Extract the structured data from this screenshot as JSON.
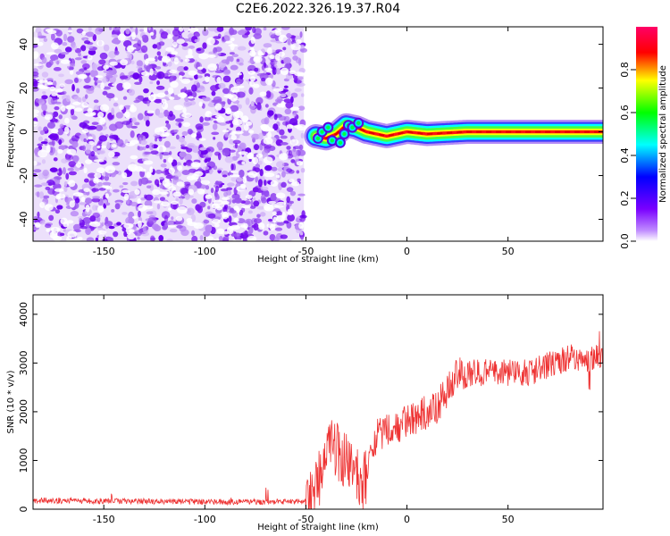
{
  "title": "C2E6.2022.326.19.37.R04",
  "chart_data": [
    {
      "type": "heatmap",
      "xlabel": "Height of straight line (km)",
      "ylabel": "Frequency (Hz)",
      "xlim": [
        -185,
        97
      ],
      "ylim": [
        -50,
        48
      ],
      "xticks": [
        -150,
        -100,
        -50,
        0,
        50
      ],
      "yticks": [
        -40,
        -20,
        0,
        20,
        40
      ],
      "noise_region_x": [
        -185,
        -51
      ],
      "signal_center_frequency": [
        {
          "x": -45,
          "y": -2
        },
        {
          "x": -40,
          "y": -3
        },
        {
          "x": -35,
          "y": -1
        },
        {
          "x": -30,
          "y": 3
        },
        {
          "x": -25,
          "y": 2
        },
        {
          "x": -20,
          "y": 0
        },
        {
          "x": -10,
          "y": -2
        },
        {
          "x": 0,
          "y": 0
        },
        {
          "x": 10,
          "y": -1
        },
        {
          "x": 30,
          "y": 0
        },
        {
          "x": 50,
          "y": 0
        },
        {
          "x": 97,
          "y": 0
        }
      ],
      "colorbar": {
        "label": "Normalized spectral amplitude",
        "range": [
          0,
          1
        ],
        "ticks": [
          "0.0",
          "0.2",
          "0.4",
          "0.6",
          "0.8"
        ],
        "colors": [
          "#ffffff",
          "#7a00ff",
          "#0000ff",
          "#00ffff",
          "#00ff00",
          "#ffff00",
          "#ff0000",
          "#ff0066"
        ]
      },
      "grid": false
    },
    {
      "type": "line",
      "xlabel": "Height of straight line (km)",
      "ylabel": "SNR (10 * v/v)",
      "xlim": [
        -185,
        97
      ],
      "ylim": [
        0,
        4400
      ],
      "xticks": [
        -150,
        -100,
        -50,
        0,
        50
      ],
      "yticks": [
        0,
        1000,
        2000,
        3000,
        4000
      ],
      "color": "#ee3333",
      "grid": false,
      "series_trend": [
        {
          "x": -185,
          "y": 180
        },
        {
          "x": -100,
          "y": 150
        },
        {
          "x": -50,
          "y": 150
        },
        {
          "x": -45,
          "y": 500
        },
        {
          "x": -38,
          "y": 1300
        },
        {
          "x": -30,
          "y": 900
        },
        {
          "x": -22,
          "y": 500
        },
        {
          "x": -15,
          "y": 1500
        },
        {
          "x": -5,
          "y": 1700
        },
        {
          "x": 5,
          "y": 1900
        },
        {
          "x": 15,
          "y": 2100
        },
        {
          "x": 25,
          "y": 2800
        },
        {
          "x": 40,
          "y": 2800
        },
        {
          "x": 60,
          "y": 2800
        },
        {
          "x": 80,
          "y": 3100
        },
        {
          "x": 97,
          "y": 3100
        }
      ]
    }
  ]
}
